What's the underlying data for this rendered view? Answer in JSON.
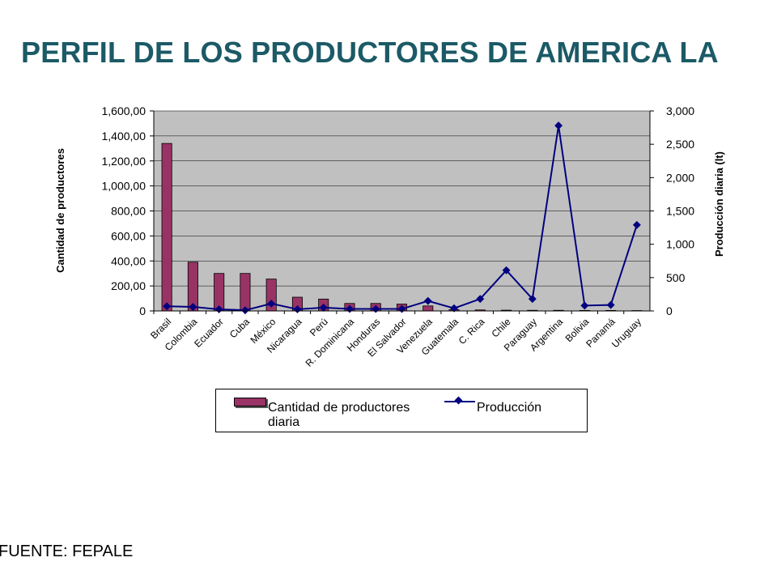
{
  "title": "PERFIL DE LOS PRODUCTORES DE AMERICA LA",
  "source": "FUENTE: FEPALE",
  "legend": {
    "bar_label": "Cantidad de productores",
    "line_label": "Producción",
    "line_label_suffix": "diaria"
  },
  "colors": {
    "bar": "#993366",
    "line": "#000080",
    "plot_bg": "#c0c0c0",
    "title": "#1b5a66"
  },
  "chart_data": {
    "type": "bar",
    "categories": [
      "Brasil",
      "Colombia",
      "Ecuador",
      "Cuba",
      "México",
      "Nicaragua",
      "Perú",
      "R. Dominicana",
      "Honduras",
      "El Salvador",
      "Venezuela",
      "Guatemala",
      "C. Rica",
      "Chile",
      "Paraguay",
      "Argentina",
      "Bolivia",
      "Panamá",
      "Uruguay"
    ],
    "series": [
      {
        "name": "Cantidad de productores",
        "type": "bar",
        "axis": "left",
        "values": [
          1340,
          390,
          300,
          300,
          255,
          110,
          95,
          60,
          60,
          55,
          40,
          10,
          8,
          6,
          5,
          5,
          4,
          4,
          3
        ]
      },
      {
        "name": "Producción diaria",
        "type": "line",
        "axis": "right",
        "values": [
          70,
          60,
          25,
          10,
          110,
          25,
          50,
          30,
          30,
          30,
          150,
          40,
          180,
          610,
          180,
          2780,
          80,
          90,
          1290
        ]
      }
    ],
    "ylabel": "Cantidad de  productores",
    "y2label": "Producción diaria (lt)",
    "ylim": [
      0,
      1600
    ],
    "y2lim": [
      0,
      3000
    ],
    "yticks": [
      "0",
      "200,00",
      "400,00",
      "600,00",
      "800,00",
      "1,000,00",
      "1,200,00",
      "1,400,00",
      "1,600,00"
    ],
    "y2ticks": [
      "0",
      "500",
      "1,000",
      "1,500",
      "2,000",
      "2,500",
      "3,000"
    ],
    "grid": true,
    "legend_position": "bottom"
  }
}
